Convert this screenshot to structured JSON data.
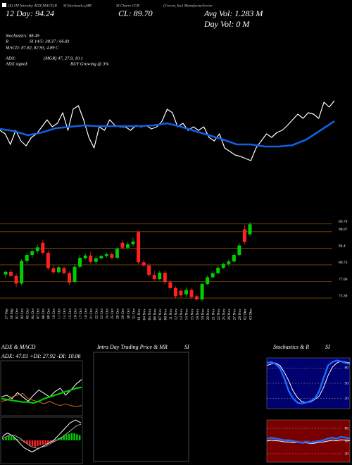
{
  "header": {
    "label_1": "(X) 1M Intraday ADX,MACD,B",
    "label_2": "SI,Stochastics,MR",
    "label_3": "SI Charts CCK",
    "label_4": "(Crown, Inc) ManufacturSector",
    "day12": "12 Day: 94.24",
    "close": "CL: 89.70",
    "avg_vol": "Avg Vol: 1.283 M",
    "day_vol": "Day Vol: 0   M",
    "stochastics": "Stochastics: 88.49",
    "r": "R",
    "rsi": "SI 14/5: 38.37 / 66.81",
    "macd": "MACD: 87.82, 82.93, 4.89 C",
    "adx": "ADX:",
    "adx_values": "(MGR) 47, 27.9, 10.1",
    "adx_signal": "ADX  signal:",
    "adx_signal_value": "BUY Growing @ 3%"
  },
  "chart_data": [
    {
      "type": "line",
      "ylim": [
        0,
        100
      ],
      "series": [
        {
          "color": "#ffffff",
          "values": [
            55,
            50,
            35,
            55,
            40,
            33,
            45,
            50,
            60,
            70,
            60,
            65,
            80,
            55,
            85,
            90,
            70,
            45,
            30,
            60,
            55,
            70,
            62,
            60,
            60,
            55,
            62,
            60,
            62,
            57,
            60,
            68,
            85,
            80,
            60,
            65,
            55,
            60,
            55,
            60,
            45,
            40,
            50,
            30,
            25,
            20,
            18,
            15,
            12,
            30,
            40,
            50,
            45,
            52,
            55,
            62,
            70,
            78,
            72,
            80,
            78,
            72,
            95,
            88,
            97
          ]
        },
        {
          "color": "#1060e0",
          "values": [
            57,
            54,
            48,
            52,
            58,
            60,
            62,
            61,
            61,
            61,
            61,
            62,
            65,
            60,
            54,
            48,
            42,
            35,
            35,
            32,
            32,
            34,
            42,
            55,
            68
          ]
        }
      ]
    },
    {
      "type": "candlestick",
      "up_color": "#00cc00",
      "down_color": "#ff2020",
      "grid_color": "#7a4a00",
      "ylim": [
        72,
        91
      ],
      "yticks": [
        89.79,
        88.07,
        84.4,
        80.73,
        77.06,
        73.39
      ],
      "categories": [
        "27 Sep",
        "30 Sep",
        "01 Oct",
        "02 Oct",
        "03 Oct",
        "04 Oct",
        "07 Oct",
        "08 Oct",
        "09 Oct",
        "10 Oct",
        "11 Oct",
        "14 Oct",
        "15 Oct",
        "16 Oct",
        "17 Oct",
        "18 Oct",
        "21 Oct",
        "22 Oct",
        "23 Oct",
        "24 Oct",
        "25 Oct",
        "28 Oct",
        "29 Oct",
        "30 Oct",
        "31 Oct",
        "01 Nov",
        "04 Nov",
        "05 Nov",
        "06 Nov",
        "07 Nov",
        "08 Nov",
        "11 Nov",
        "12 Nov",
        "13 Nov",
        "14 Nov",
        "15 Nov",
        "18 Nov",
        "19 Nov",
        "20 Nov",
        "21 Nov",
        "22 Nov",
        "25 Nov",
        "26 Nov",
        "27 Nov",
        "29 Nov",
        "02 Dec",
        "03 Dec"
      ],
      "open": [
        78.6,
        79.2,
        78.3,
        76.6,
        81.6,
        82.9,
        83.8,
        85.6,
        83.4,
        80.0,
        79.1,
        80.0,
        78.9,
        77.0,
        80.3,
        82.2,
        82.8,
        81.4,
        82.2,
        82.7,
        83.1,
        82.3,
        85.6,
        84.5,
        85.3,
        88.0,
        81.3,
        80.6,
        78.5,
        77.6,
        79.0,
        76.9,
        75.6,
        75.0,
        74.2,
        75.2,
        73.8,
        73.1,
        76.5,
        78.0,
        78.9,
        80.1,
        80.9,
        81.5,
        82.9,
        88.6,
        87.5
      ],
      "high": [
        79.5,
        79.8,
        78.8,
        82.0,
        83.4,
        84.2,
        85.3,
        86.3,
        83.9,
        80.8,
        80.5,
        80.4,
        79.3,
        80.9,
        82.9,
        83.3,
        83.6,
        82.7,
        83.0,
        83.4,
        83.5,
        84.6,
        86.3,
        85.7,
        86.7,
        88.2,
        81.9,
        81.2,
        79.4,
        79.4,
        79.6,
        77.4,
        76.0,
        75.5,
        75.8,
        75.6,
        74.2,
        76.8,
        78.4,
        79.4,
        80.5,
        81.2,
        81.9,
        83.3,
        85.5,
        89.6,
        90.2
      ],
      "low": [
        77.8,
        78.0,
        75.8,
        76.2,
        81.0,
        82.3,
        83.2,
        83.0,
        79.6,
        78.7,
        78.8,
        78.6,
        76.2,
        76.8,
        80.0,
        81.9,
        81.0,
        80.9,
        81.8,
        82.3,
        81.9,
        82.0,
        84.1,
        84.2,
        84.8,
        80.9,
        80.2,
        78.1,
        77.2,
        77.3,
        76.4,
        75.3,
        73.3,
        73.5,
        73.6,
        73.2,
        72.9,
        72.8,
        76.2,
        77.7,
        78.6,
        79.8,
        80.5,
        81.2,
        82.6,
        85.3,
        87.1
      ],
      "close": [
        79.2,
        78.3,
        76.6,
        81.6,
        82.9,
        83.8,
        84.6,
        83.4,
        80.0,
        79.1,
        80.2,
        78.9,
        76.8,
        80.3,
        82.3,
        82.8,
        81.4,
        82.2,
        82.7,
        83.1,
        82.3,
        84.3,
        84.5,
        85.3,
        85.9,
        81.3,
        80.6,
        78.5,
        77.6,
        79.0,
        76.9,
        75.6,
        73.8,
        74.0,
        75.2,
        73.6,
        73.1,
        76.5,
        78.0,
        78.9,
        80.1,
        80.9,
        81.5,
        82.9,
        85.0,
        85.8,
        89.7
      ]
    },
    {
      "type": "adx",
      "title": "ADX  & MACD",
      "subtitle": "ADX: 47.01 +DI: 27.92 -DI: 10.06",
      "ylim": [
        0,
        60
      ],
      "series": [
        {
          "color": "#ffffff",
          "values": [
            20,
            22,
            18,
            25,
            20,
            15,
            22,
            28,
            24,
            20,
            26,
            30,
            22,
            28,
            35,
            40
          ]
        },
        {
          "color": "#d07010",
          "values": [
            15,
            16,
            20,
            22,
            24,
            18,
            16,
            14,
            12,
            15,
            12,
            10,
            12,
            10,
            9,
            10
          ]
        },
        {
          "color": "#00cc00",
          "values": [
            18,
            17,
            16,
            15,
            14,
            14,
            13,
            15,
            18,
            20,
            22,
            24,
            26,
            28,
            30,
            31
          ]
        }
      ]
    },
    {
      "type": "macd",
      "ylim": [
        -15,
        15
      ],
      "up_color": "#00cc00",
      "down_color": "#ff2020",
      "bars": [
        1,
        2,
        3,
        3,
        2,
        1,
        0.5,
        -0.5,
        -1.5,
        -2.5,
        -3.5,
        -4,
        -4.5,
        -4,
        -3.5,
        -3,
        -2.5,
        -2,
        -1.5,
        -1,
        0.5,
        1.5,
        2.5,
        3.5,
        4,
        4.5,
        5,
        4.8,
        4.2,
        3.5
      ],
      "series": [
        {
          "color": "#ffffff",
          "values": [
            2,
            4,
            5,
            4,
            3,
            1,
            -1,
            -3,
            -5,
            -6,
            -7,
            -8,
            -7,
            -6,
            -5,
            -4,
            -3,
            -2,
            -1,
            0,
            2,
            4,
            6,
            8,
            10,
            12,
            13,
            14,
            13,
            12
          ]
        },
        {
          "color": "#aaaaaa",
          "values": [
            1,
            2,
            3,
            3.5,
            3.5,
            3,
            2,
            1,
            -1,
            -2,
            -3.5,
            -4.5,
            -5,
            -5.5,
            -5,
            -4.5,
            -4,
            -3,
            -2,
            -1,
            0,
            1,
            2,
            3.5,
            5,
            6.5,
            8,
            9.5,
            10.5,
            11
          ]
        }
      ]
    },
    {
      "type": "intraday",
      "title": "Intra Day Trading Price  & MR",
      "title_2": "SI"
    },
    {
      "type": "stoch",
      "title": "Stochastics & R",
      "title_2": "SI",
      "background": "#00006e",
      "ylim": [
        0,
        100
      ],
      "yticks": [
        80,
        50,
        20
      ],
      "series": [
        {
          "color": "#ffffff",
          "values": [
            85,
            88,
            90,
            85,
            72,
            55,
            35,
            22,
            14,
            12,
            13,
            18,
            25,
            42,
            65,
            82,
            90,
            94,
            92,
            90
          ]
        },
        {
          "color": "#1a6cff",
          "values": [
            90,
            92,
            88,
            80,
            60,
            35,
            20,
            12,
            10,
            12,
            15,
            20,
            35,
            60,
            85,
            92,
            95,
            93,
            90,
            88
          ]
        }
      ]
    },
    {
      "type": "rsi",
      "background": "#7a0000",
      "ylim": [
        0,
        100
      ],
      "yticks": [
        80,
        50,
        20
      ],
      "series": [
        {
          "color": "#ffffff",
          "values": [
            50,
            52,
            51,
            50,
            48,
            48,
            46,
            47,
            45,
            46,
            44,
            45,
            47,
            48,
            50,
            52,
            51,
            53,
            52,
            51
          ]
        },
        {
          "color": "#1a6cff",
          "values": [
            55,
            58,
            56,
            54,
            52,
            52,
            50,
            48,
            46,
            48,
            46,
            48,
            50,
            52,
            56,
            58,
            56,
            60,
            58,
            56
          ]
        }
      ]
    }
  ]
}
